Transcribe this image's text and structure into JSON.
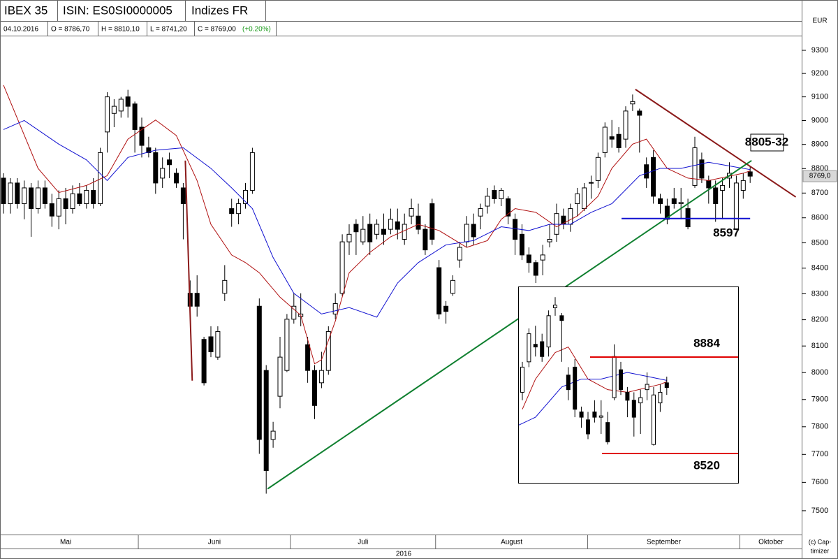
{
  "header": {
    "title": "IBEX 35",
    "isin": "ISIN: ES0SI0000005",
    "group": "Indizes FR",
    "currency": "EUR",
    "date": "04.10.2016",
    "open": "O = 8786,70",
    "high": "H = 8810,10",
    "low": "L = 8741,20",
    "close": "C = 8769,00",
    "change": "(+0.20%)"
  },
  "chart_data": {
    "type": "candlestick",
    "log": true,
    "ylim": [
      7417,
      9361
    ],
    "yticks": [
      7500,
      7600,
      7700,
      7800,
      7900,
      8000,
      8100,
      8200,
      8300,
      8400,
      8500,
      8600,
      8700,
      8800,
      8900,
      9000,
      9100,
      9200,
      9300
    ],
    "months": [
      "Mai",
      "Juni",
      "Juli",
      "August",
      "September",
      "Oktober"
    ],
    "month_starts": [
      -1,
      20,
      42,
      63,
      85,
      107
    ],
    "year": "2016",
    "open": [
      8761,
      8657,
      8741,
      8657,
      8721,
      8637,
      8721,
      8657,
      8607,
      8677,
      8637,
      8697,
      8657,
      8711,
      8657,
      8952,
      9030,
      9040,
      9100,
      9070,
      8972,
      8886,
      8866,
      8761,
      8836,
      8781,
      8721,
      8302,
      8302,
      8125,
      8135,
      8058,
      8302,
      8637,
      8617,
      8657,
      8711,
      8252,
      8008,
      7754,
      7912,
      8008,
      8202,
      8212,
      8105,
      8008,
      7962,
      8008,
      8222,
      8302,
      8504,
      8574,
      8504,
      8574,
      8534,
      8554,
      8554,
      8584,
      8514,
      8607,
      8607,
      8554,
      8657,
      8402,
      8252,
      8302,
      8432,
      8504,
      8574,
      8607,
      8647,
      8711,
      8677,
      8677,
      8594,
      8534,
      8452,
      8422,
      8432,
      8504,
      8534,
      8607,
      8574,
      8657,
      8637,
      8741,
      8751,
      8866,
      8932,
      8942,
      8922,
      9070,
      9040,
      8816,
      8846,
      8677,
      8647,
      8677,
      8657,
      8637,
      8731,
      8836,
      8751,
      8721,
      8711,
      8761,
      8554,
      8711,
      8786.7
    ],
    "high": [
      8781,
      8761,
      8761,
      8751,
      8741,
      8751,
      8751,
      8697,
      8711,
      8721,
      8731,
      8741,
      8731,
      8761,
      8886,
      9120,
      9090,
      9100,
      9130,
      9080,
      9012,
      8932,
      8886,
      8846,
      8866,
      8801,
      8741,
      8352,
      8372,
      8135,
      8175,
      8175,
      8412,
      8677,
      8677,
      8741,
      8886,
      8282,
      8028,
      7818,
      8135,
      8222,
      8302,
      8302,
      8135,
      8028,
      8078,
      8175,
      8302,
      8534,
      8574,
      8594,
      8607,
      8617,
      8594,
      8617,
      8637,
      8637,
      8617,
      8677,
      8657,
      8574,
      8677,
      8432,
      8272,
      8372,
      8504,
      8607,
      8617,
      8657,
      8721,
      8731,
      8721,
      8687,
      8617,
      8574,
      8482,
      8432,
      8492,
      8574,
      8657,
      8637,
      8657,
      8721,
      8741,
      8771,
      8866,
      8992,
      9002,
      8972,
      9060,
      9110,
      9050,
      8846,
      8876,
      8697,
      8677,
      8721,
      8721,
      8677,
      8932,
      8866,
      8771,
      8751,
      8761,
      8826,
      8771,
      8781,
      8810.1
    ],
    "low": [
      8617,
      8617,
      8637,
      8594,
      8524,
      8617,
      8637,
      8564,
      8554,
      8574,
      8617,
      8647,
      8637,
      8637,
      8647,
      8866,
      8972,
      9012,
      9012,
      8866,
      8846,
      8846,
      8697,
      8721,
      8761,
      8721,
      8514,
      8232,
      8212,
      7952,
      8058,
      8048,
      8272,
      8564,
      8574,
      8637,
      8697,
      7702,
      7560,
      7724,
      7868,
      8002,
      8185,
      8175,
      7962,
      7828,
      7942,
      7992,
      8202,
      8292,
      8452,
      8452,
      8492,
      8452,
      8514,
      8492,
      8534,
      8514,
      8492,
      8574,
      8534,
      8452,
      8492,
      8202,
      8185,
      8292,
      8402,
      8482,
      8492,
      8554,
      8617,
      8657,
      8647,
      8574,
      8452,
      8432,
      8382,
      8342,
      8372,
      8482,
      8504,
      8554,
      8544,
      8607,
      8627,
      8677,
      8721,
      8846,
      8886,
      8866,
      8886,
      9040,
      8866,
      8721,
      8657,
      8617,
      8574,
      8637,
      8594,
      8554,
      8721,
      8741,
      8657,
      8584,
      8594,
      8721,
      8550,
      8677,
      8741.2
    ],
    "close": [
      8657,
      8741,
      8657,
      8721,
      8637,
      8721,
      8657,
      8607,
      8677,
      8637,
      8697,
      8657,
      8711,
      8657,
      8866,
      9100,
      9060,
      9090,
      9060,
      8962,
      8896,
      8866,
      8741,
      8801,
      8816,
      8741,
      8657,
      8252,
      8252,
      7962,
      8078,
      8155,
      8352,
      8617,
      8657,
      8711,
      8866,
      7754,
      7642,
      7784,
      8058,
      8202,
      8252,
      8222,
      8008,
      7878,
      8008,
      8155,
      8262,
      8504,
      8534,
      8544,
      8554,
      8504,
      8574,
      8534,
      8594,
      8554,
      8574,
      8637,
      8554,
      8472,
      8514,
      8222,
      8232,
      8352,
      8482,
      8574,
      8524,
      8637,
      8687,
      8677,
      8711,
      8607,
      8514,
      8452,
      8422,
      8372,
      8452,
      8514,
      8617,
      8574,
      8637,
      8697,
      8721,
      8743,
      8846,
      8972,
      8922,
      8886,
      9040,
      9080,
      9022,
      8761,
      8687,
      8657,
      8594,
      8657,
      8662,
      8564,
      8886,
      8761,
      8721,
      8657,
      8731,
      8781,
      8741,
      8751,
      8769
    ],
    "series": [
      {
        "color": "#b01010",
        "x": [
          0,
          5,
          8,
          12,
          15,
          18,
          22,
          25,
          28,
          30,
          33,
          35,
          37,
          40,
          43,
          45,
          46,
          48,
          50,
          53,
          56,
          60,
          63,
          67,
          70,
          72,
          74,
          77,
          80,
          83,
          86,
          88,
          91,
          93,
          96,
          99,
          102,
          107,
          108
        ],
        "values": [
          9150,
          8801,
          8702,
          8731,
          8771,
          8922,
          9002,
          8937,
          8751,
          8574,
          8452,
          8422,
          8382,
          8287,
          8217,
          8033,
          8048,
          8195,
          8382,
          8462,
          8524,
          8574,
          8549,
          8482,
          8509,
          8594,
          8637,
          8622,
          8564,
          8607,
          8687,
          8801,
          8901,
          8922,
          8801,
          8761,
          8751,
          8781,
          8791
        ]
      },
      {
        "color": "#1010d0",
        "x": [
          0,
          3,
          8,
          12,
          15,
          18,
          22,
          26,
          30,
          33,
          36,
          39,
          42,
          46,
          50,
          54,
          57,
          60,
          64,
          68,
          72,
          76,
          79,
          82,
          85,
          88,
          92,
          95,
          98,
          102,
          105,
          108
        ],
        "values": [
          8962,
          9000,
          8901,
          8836,
          8751,
          8846,
          8876,
          8886,
          8801,
          8721,
          8637,
          8442,
          8302,
          8222,
          8247,
          8210,
          8342,
          8422,
          8492,
          8509,
          8564,
          8549,
          8574,
          8574,
          8622,
          8657,
          8771,
          8801,
          8801,
          8826,
          8811,
          8796
        ]
      }
    ],
    "trendlines": [
      {
        "color": "#8b1a1a",
        "x": [
          91.4,
          114.6
        ],
        "values": [
          9132,
          8684
        ]
      },
      {
        "color": "#108030",
        "x": [
          38.2,
          108.2
        ],
        "values": [
          7577,
          8833
        ]
      },
      {
        "color": "#8b1a1a",
        "x": [
          26.3,
          27.3
        ],
        "values": [
          8833,
          7970
        ]
      }
    ],
    "support": {
      "value": 8597,
      "color": "#1010d0",
      "x": [
        89.4,
        108
      ]
    },
    "resistance_label": "8805-32",
    "last_price": {
      "value": 8769,
      "label": "8769,0"
    },
    "inset": {
      "first_candle": 86,
      "ylim": [
        8412,
        9145
      ],
      "levels": [
        {
          "value": 8884,
          "color": "#e00000"
        },
        {
          "value": 8520,
          "color": "#e00000"
        }
      ]
    },
    "copyright": [
      "(c) Cap-",
      "timizer"
    ]
  }
}
